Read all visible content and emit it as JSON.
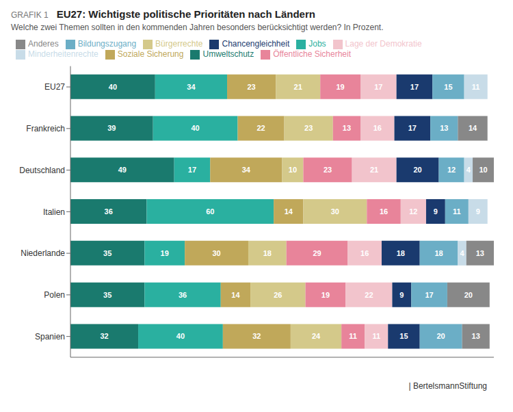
{
  "chart_data": {
    "type": "bar",
    "orientation": "horizontal",
    "stacked": true,
    "title": "EU27: Wichtigste politische Prioritäten nach Ländern",
    "subtitle": "Welche zwei Themen sollten in den kommenden Jahren besonders berücksichtigt werden? In Prozent.",
    "annotations": [
      "GRAFIK 1",
      "|",
      "BertelsmannStiftung"
    ],
    "categories": [
      "EU27",
      "Frankreich",
      "Deutschland",
      "Italien",
      "Niederlande",
      "Polen",
      "Spanien"
    ],
    "series": [
      {
        "name": "Umweltschutz",
        "color": "#1a7a6e",
        "values": [
          40,
          39,
          49,
          36,
          35,
          35,
          32
        ]
      },
      {
        "name": "Jobs",
        "color": "#2ab0a0",
        "values": [
          34,
          40,
          17,
          60,
          19,
          36,
          40
        ]
      },
      {
        "name": "Soziale Sicherung",
        "color": "#c0a85a",
        "values": [
          23,
          22,
          34,
          14,
          30,
          14,
          32
        ]
      },
      {
        "name": "Bürgerrechte",
        "color": "#d4c98a",
        "values": [
          21,
          23,
          10,
          30,
          18,
          26,
          24
        ]
      },
      {
        "name": "Öffentliche Sicherheit",
        "color": "#e8849a",
        "values": [
          19,
          13,
          23,
          16,
          29,
          19,
          11
        ]
      },
      {
        "name": "Lage der Demokratie",
        "color": "#f2c4cc",
        "values": [
          17,
          16,
          21,
          12,
          16,
          22,
          11
        ]
      },
      {
        "name": "Chancengleichheit",
        "color": "#1a3a6e",
        "values": [
          17,
          17,
          20,
          9,
          18,
          9,
          15
        ]
      },
      {
        "name": "Bildungszugang",
        "color": "#6baec6",
        "values": [
          15,
          13,
          12,
          11,
          18,
          17,
          20
        ]
      },
      {
        "name": "Minderheitenrechte",
        "color": "#c8dce8",
        "values": [
          11,
          0,
          4,
          9,
          4,
          0,
          0
        ]
      },
      {
        "name": "Anderes",
        "color": "#888888",
        "values": [
          0,
          14,
          10,
          0,
          13,
          20,
          13
        ]
      }
    ],
    "xlim": [
      0,
      200
    ],
    "tick_labels": "y",
    "data_labels": true
  }
}
